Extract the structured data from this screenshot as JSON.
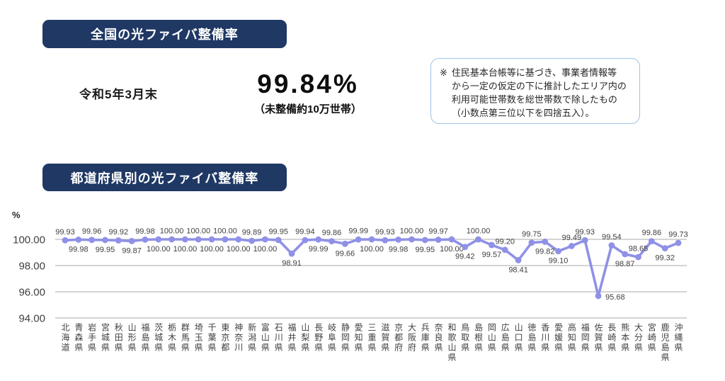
{
  "national": {
    "header": "全国の光ファイバ整備率",
    "date_label": "令和5年3月末",
    "value": "99.84%",
    "value_sub": "（未整備約10万世帯）",
    "note_marker": "※",
    "note_lines": [
      "住民基本台帳等に基づき、事業者情報等",
      "から一定の仮定の下に推計したエリア内の",
      "利用可能世帯数を総世帯数で除したもの",
      "（小数点第三位以下を四捨五入）。"
    ]
  },
  "prefecture_section": {
    "header": "都道府県別の光ファイバ整備率"
  },
  "colors": {
    "banner_navy": "#1f3864",
    "line_purple": "#8f91e6",
    "grid_gray": "#c6c6c6",
    "label_gray": "#404040",
    "note_border_blue": "#9dc3e6"
  },
  "chart_data": {
    "type": "line",
    "title": "都道府県別の光ファイバ整備率",
    "ylabel": "%",
    "xlabel": "",
    "ylim": [
      93.6,
      100.9
    ],
    "yticks": [
      100.0,
      98.0,
      96.0,
      94.0
    ],
    "ytick_labels": [
      "100.00",
      "98.00",
      "96.00",
      "94.00"
    ],
    "grid": true,
    "legend": false,
    "categories": [
      "北海道",
      "青森県",
      "岩手県",
      "宮城県",
      "秋田県",
      "山形県",
      "福島県",
      "茨城県",
      "栃木県",
      "群馬県",
      "埼玉県",
      "千葉県",
      "東京都",
      "神奈川",
      "新潟県",
      "富山県",
      "石川県",
      "福井県",
      "山梨県",
      "長野県",
      "岐阜県",
      "静岡県",
      "愛知県",
      "三重県",
      "滋賀県",
      "京都府",
      "大阪府",
      "兵庫県",
      "奈良県",
      "和歌山県",
      "鳥取県",
      "島根県",
      "岡山県",
      "広島県",
      "山口県",
      "徳島県",
      "香川県",
      "愛媛県",
      "高知県",
      "福岡県",
      "佐賀県",
      "長崎県",
      "熊本県",
      "大分県",
      "宮崎県",
      "鹿児島県",
      "沖縄県"
    ],
    "values": [
      99.93,
      99.98,
      99.96,
      99.95,
      99.92,
      99.87,
      99.98,
      100.0,
      100.0,
      100.0,
      100.0,
      100.0,
      100.0,
      100.0,
      99.89,
      100.0,
      99.95,
      98.91,
      99.94,
      99.99,
      99.86,
      99.66,
      99.99,
      100.0,
      99.93,
      99.98,
      100.0,
      99.95,
      99.97,
      100.0,
      99.42,
      100.0,
      99.57,
      99.2,
      98.41,
      99.75,
      99.82,
      99.1,
      99.49,
      99.93,
      95.68,
      99.54,
      98.87,
      98.65,
      99.86,
      99.32,
      99.73
    ],
    "label_positions": [
      "a",
      "b",
      "a",
      "b",
      "a",
      "b",
      "a",
      "b",
      "a",
      "b",
      "a",
      "b",
      "a",
      "b",
      "a",
      "b",
      "a",
      "b",
      "a",
      "b",
      "a",
      "b",
      "a",
      "b",
      "a",
      "b",
      "a",
      "b",
      "a",
      "b",
      "b",
      "a",
      "b",
      "a",
      "b",
      "a",
      "b",
      "b",
      "a",
      "a",
      "r",
      "a",
      "b",
      "a",
      "a",
      "b",
      "a"
    ]
  }
}
